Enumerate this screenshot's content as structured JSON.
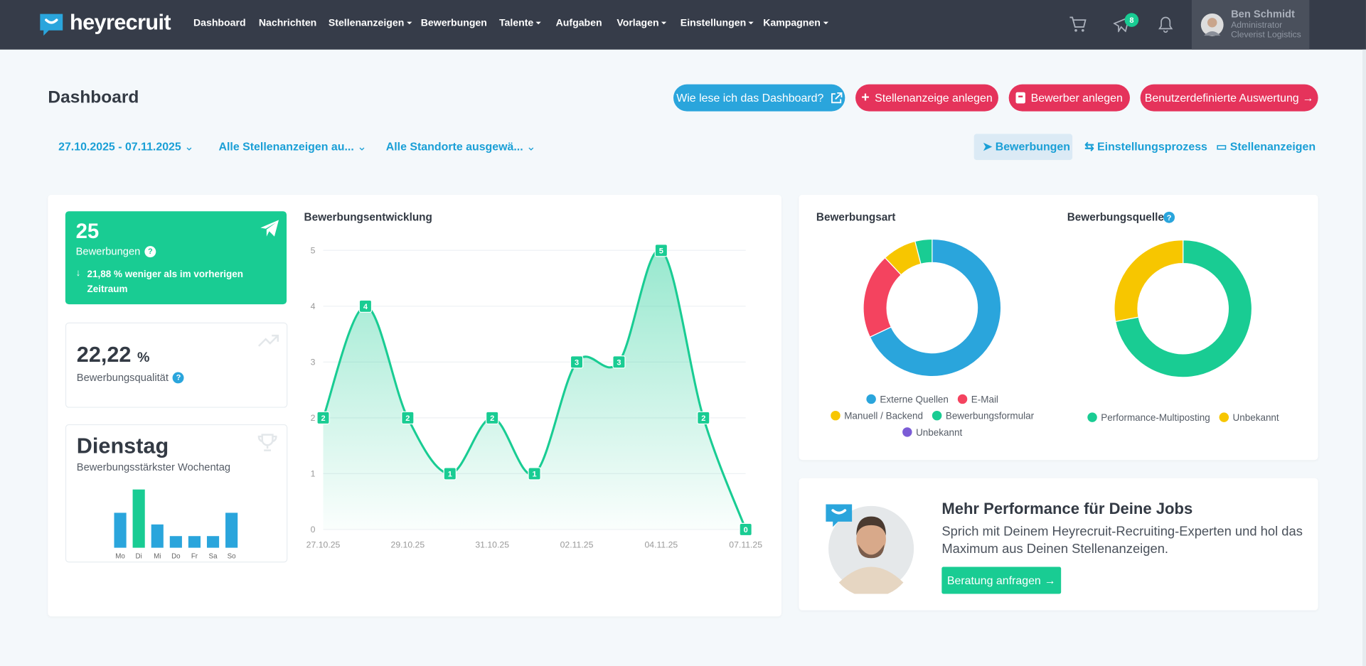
{
  "nav": {
    "brand": "heyrecruit",
    "items": [
      "Dashboard",
      "Nachrichten",
      "Stellenanzeigen",
      "Bewerbungen",
      "Talente",
      "Aufgaben",
      "Vorlagen",
      "Einstellungen",
      "Kampagnen"
    ],
    "notification_count": 8,
    "user": {
      "name": "Ben Schmidt",
      "role": "Administrator",
      "company": "Cleverist Logistics"
    }
  },
  "header": {
    "title": "Dashboard",
    "buttons": [
      "Wie lese ich das Dashboard?",
      "Stellenanzeige anlegen",
      "Bewerber anlegen",
      "Benutzerdefinierte Auswertung"
    ]
  },
  "filters": {
    "date_range": "27.10.2025 - 07.11.2025",
    "job_ads": "Alle Stellenanzeigen au...",
    "locations": "Alle Standorte ausgewä...",
    "tabs": [
      "Bewerbungen",
      "Einstellungsprozess",
      "Stellenanzeigen"
    ]
  },
  "kpis": {
    "applications": {
      "value": 25,
      "label": "Bewerbungen",
      "change": "21,88 % weniger als im vorherigen Zeitraum"
    },
    "quality": {
      "value": "22,22",
      "unit": "%",
      "label": "Bewerbungsqualität"
    },
    "weekday": {
      "value": "Dienstag",
      "label": "Bewerbungsstärkster Wochentag"
    }
  },
  "chart_data": [
    {
      "type": "line",
      "title": "Bewerbungsentwicklung",
      "categories": [
        "27.10.25",
        null,
        "29.10.25",
        null,
        "31.10.25",
        null,
        "02.11.25",
        null,
        "04.11.25",
        null,
        "07.11.25"
      ],
      "values": [
        2,
        4,
        2,
        1,
        2,
        1,
        3,
        3,
        5,
        2,
        0
      ],
      "color": "#19cc93",
      "ylim": [
        0,
        5
      ],
      "yticks": [
        0,
        1,
        2,
        3,
        4,
        5
      ],
      "grid": true
    },
    {
      "type": "bar",
      "categories": [
        "Mo",
        "Di",
        "Mi",
        "Do",
        "Fr",
        "Sa",
        "So"
      ],
      "values": [
        3,
        5,
        2,
        1,
        1,
        1,
        3
      ],
      "colors": [
        "#2aa5dc",
        "#19cc93",
        "#2aa5dc",
        "#2aa5dc",
        "#2aa5dc",
        "#2aa5dc",
        "#2aa5dc"
      ],
      "ylim": [
        0,
        5
      ]
    },
    {
      "type": "pie",
      "title": "Bewerbungsart",
      "categories": [
        "Externe Quellen",
        "E-Mail",
        "Manuell / Backend",
        "Bewerbungsformular",
        "Unbekannt"
      ],
      "values": [
        17,
        5,
        2,
        1,
        0
      ],
      "colors": [
        "#2aa5dc",
        "#f4435f",
        "#f7c600",
        "#19cc93",
        "#7b5cd6"
      ]
    },
    {
      "type": "pie",
      "title": "Bewerbungsquelle",
      "categories": [
        "Performance-Multiposting",
        "Unbekannt"
      ],
      "values": [
        18,
        7
      ],
      "colors": [
        "#19cc93",
        "#f7c600"
      ]
    }
  ],
  "promo": {
    "title": "Mehr Performance für Deine Jobs",
    "text": "Sprich mit Deinem Heyrecruit-Recruiting-Experten und hol das Maximum aus Deinen Stellenanzeigen.",
    "button": "Beratung anfragen"
  }
}
